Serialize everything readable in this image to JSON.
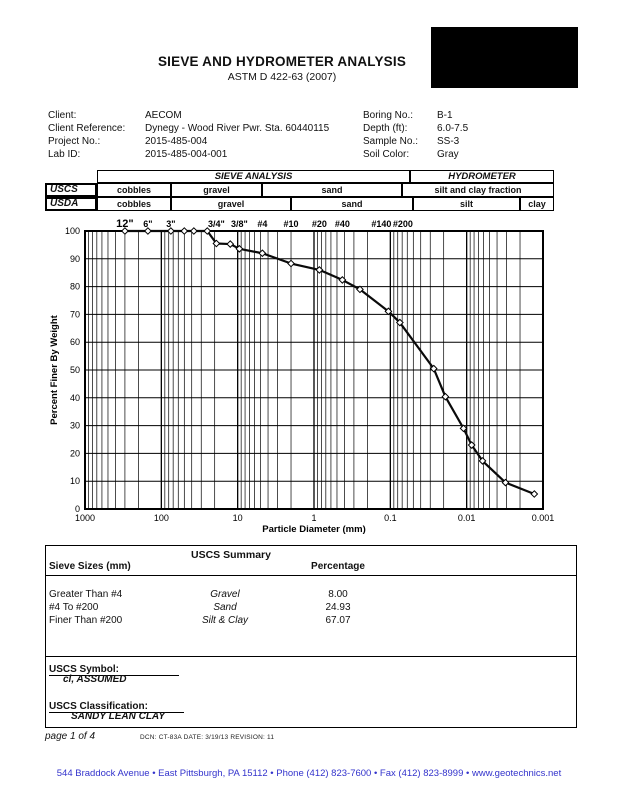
{
  "header": {
    "title": "SIEVE AND HYDROMETER ANALYSIS",
    "subtitle": "ASTM D 422-63 (2007)"
  },
  "info": {
    "left": [
      {
        "label": "Client:",
        "value": "AECOM"
      },
      {
        "label": "Client Reference:",
        "value": "Dynegy - Wood River Pwr. Sta. 60440115"
      },
      {
        "label": "Project No.:",
        "value": "2015-485-004"
      },
      {
        "label": "Lab ID:",
        "value": "2015-485-004-001"
      }
    ],
    "right": [
      {
        "label": "Boring No.:",
        "value": "B-1"
      },
      {
        "label": "Depth (ft):",
        "value": "6.0-7.5"
      },
      {
        "label": "Sample No.:",
        "value": "SS-3"
      },
      {
        "label": "Soil Color:",
        "value": "Gray"
      }
    ]
  },
  "classification_table": {
    "sieve_analysis": "SIEVE ANALYSIS",
    "hydrometer": "HYDROMETER",
    "uscs_label": "USCS",
    "usda_label": "USDA",
    "uscs_cells": [
      "cobbles",
      "gravel",
      "sand",
      "silt and clay fraction"
    ],
    "usda_cells": [
      "cobbles",
      "gravel",
      "sand",
      "silt",
      "clay"
    ]
  },
  "chart_data": {
    "type": "line",
    "title": "",
    "xlabel": "Particle Diameter (mm)",
    "ylabel": "Percent Finer By Weight",
    "x_scale": "log-descending",
    "x_ticks": [
      1000,
      100,
      10,
      1,
      0.1,
      0.01,
      0.001
    ],
    "xlim": [
      1000,
      0.001
    ],
    "y_ticks": [
      100,
      90,
      80,
      70,
      60,
      50,
      40,
      30,
      20,
      10,
      0
    ],
    "ylim": [
      0,
      100
    ],
    "grid": "on",
    "legend": "none",
    "sieve_labels": [
      {
        "label": "12\"",
        "d": 300
      },
      {
        "label": "6\"",
        "d": 150
      },
      {
        "label": "3\"",
        "d": 75
      },
      {
        "label": "3/4\"",
        "d": 19
      },
      {
        "label": "3/8\"",
        "d": 9.5
      },
      {
        "label": "#4",
        "d": 4.75
      },
      {
        "label": "#10",
        "d": 2
      },
      {
        "label": "#20",
        "d": 0.85
      },
      {
        "label": "#40",
        "d": 0.425
      },
      {
        "label": "#140",
        "d": 0.106
      },
      {
        "label": "#200",
        "d": 0.075
      }
    ],
    "series": [
      {
        "name": "grain-size-distribution",
        "points": [
          [
            300,
            100
          ],
          [
            150,
            100
          ],
          [
            75,
            100
          ],
          [
            50,
            100
          ],
          [
            37.5,
            100
          ],
          [
            25,
            100
          ],
          [
            19,
            95.5
          ],
          [
            12.5,
            95.3
          ],
          [
            9.5,
            93.6
          ],
          [
            4.75,
            92.0
          ],
          [
            2,
            88.3
          ],
          [
            0.85,
            86.0
          ],
          [
            0.425,
            82.4
          ],
          [
            0.25,
            79.0
          ],
          [
            0.106,
            71.1
          ],
          [
            0.075,
            67.07
          ],
          [
            0.027,
            50.5
          ],
          [
            0.019,
            40.4
          ],
          [
            0.011,
            29.0
          ],
          [
            0.0086,
            23.0
          ],
          [
            0.0062,
            17.3
          ],
          [
            0.0031,
            9.5
          ],
          [
            0.0013,
            5.4
          ]
        ]
      }
    ]
  },
  "summary": {
    "title": "USCS Summary",
    "col1_header": "Sieve Sizes (mm)",
    "col3_header": "Percentage",
    "rows": [
      {
        "range": "Greater Than #4",
        "fraction": "Gravel",
        "percentage": "8.00"
      },
      {
        "range": "#4 To #200",
        "fraction": "Sand",
        "percentage": "24.93"
      },
      {
        "range": "Finer Than #200",
        "fraction": "Silt & Clay",
        "percentage": "67.07"
      }
    ],
    "symbol_label": "USCS Symbol:",
    "symbol_value": "cl, ASSUMED",
    "classification_label": "USCS Classification:",
    "classification_value": "SANDY LEAN CLAY"
  },
  "footer": {
    "page": "page 1 of 4",
    "dcn": "DCN: CT-83A   DATE: 3/19/13   REVISION: 11",
    "address": "544 Braddock Avenue  •  East Pittsburgh, PA  15112  •  Phone  (412) 823-7600  •  Fax (412) 823-8999  •  www.geotechnics.net",
    "link_color": "#3333cc"
  }
}
